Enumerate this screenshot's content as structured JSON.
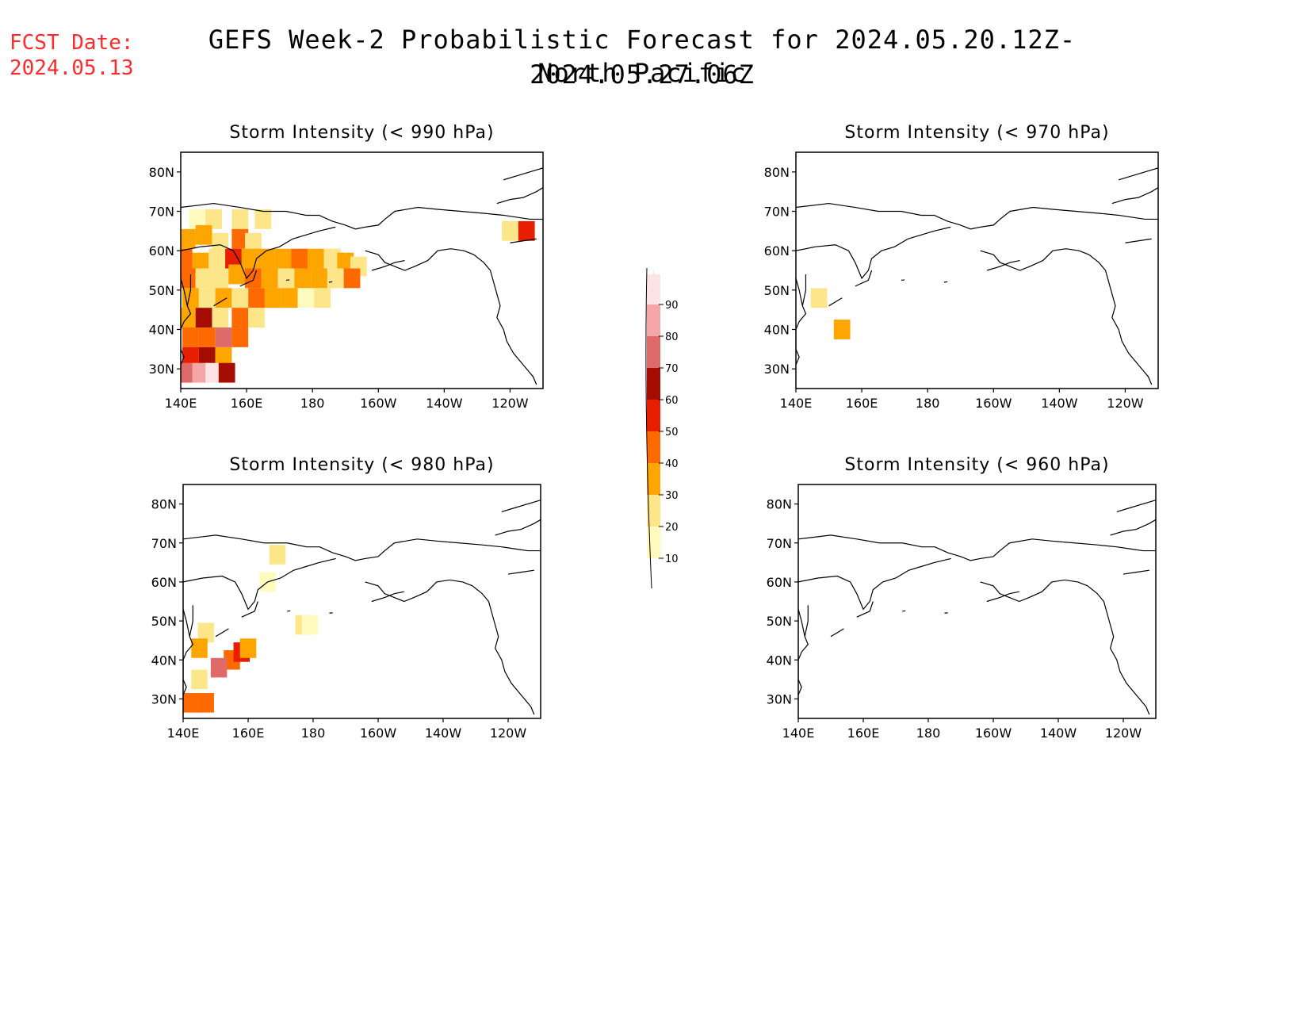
{
  "header": {
    "fcst_label": "FCST Date:",
    "fcst_date": "2024.05.13",
    "title_line1": "GEFS Week-2 Probabilistic Forecast for 2024.05.20.12Z-2024.05.27.06Z",
    "title_line2": "North Pacific",
    "fcst_color": "#ff2a2a"
  },
  "panels": [
    {
      "id": "p990",
      "title": "Storm Intensity (< 990 hPa)"
    },
    {
      "id": "p970",
      "title": "Storm Intensity (< 970 hPa)"
    },
    {
      "id": "p980",
      "title": "Storm Intensity (< 980 hPa)"
    },
    {
      "id": "p960",
      "title": "Storm Intensity (< 960 hPa)"
    }
  ],
  "axes": {
    "x_ticks": [
      "140E",
      "160E",
      "180",
      "160W",
      "140W",
      "120W"
    ],
    "y_ticks": [
      "80N",
      "70N",
      "60N",
      "50N",
      "40N",
      "30N"
    ],
    "lon_range_deg_east": [
      140,
      250
    ],
    "lat_range": [
      25,
      85
    ]
  },
  "colorbar": {
    "levels": [
      "10",
      "20",
      "30",
      "40",
      "50",
      "60",
      "70",
      "80",
      "90"
    ],
    "colors": [
      "#fffbbf",
      "#fde58a",
      "#ffa500",
      "#ff6a00",
      "#e81e00",
      "#a50d00",
      "#de6a6a",
      "#f4a6a6",
      "#fde4e4"
    ]
  },
  "chart_data": {
    "type": "heatmap",
    "units": "probability (%)",
    "fields": [
      {
        "panel": "p990",
        "cells": [
          [
            145,
            68,
            15
          ],
          [
            150,
            68,
            25
          ],
          [
            158,
            68,
            25
          ],
          [
            165,
            68,
            20
          ],
          [
            142,
            63,
            35
          ],
          [
            147,
            64,
            30
          ],
          [
            152,
            62,
            20
          ],
          [
            158,
            63,
            40
          ],
          [
            162,
            62,
            25
          ],
          [
            141,
            58,
            45
          ],
          [
            146,
            57,
            30
          ],
          [
            151,
            58,
            25
          ],
          [
            156,
            58,
            50
          ],
          [
            161,
            58,
            35
          ],
          [
            166,
            58,
            30
          ],
          [
            171,
            58,
            35
          ],
          [
            176,
            58,
            40
          ],
          [
            181,
            58,
            30
          ],
          [
            186,
            58,
            25
          ],
          [
            190,
            57,
            35
          ],
          [
            194,
            56,
            20
          ],
          [
            142,
            53,
            40
          ],
          [
            147,
            53,
            25
          ],
          [
            152,
            53,
            20
          ],
          [
            157,
            54,
            35
          ],
          [
            162,
            53,
            40
          ],
          [
            167,
            53,
            30
          ],
          [
            172,
            53,
            25
          ],
          [
            177,
            53,
            30
          ],
          [
            182,
            53,
            30
          ],
          [
            187,
            53,
            25
          ],
          [
            192,
            53,
            40
          ],
          [
            143,
            48,
            35
          ],
          [
            148,
            48,
            20
          ],
          [
            153,
            48,
            30
          ],
          [
            158,
            48,
            25
          ],
          [
            163,
            48,
            45
          ],
          [
            168,
            48,
            35
          ],
          [
            173,
            48,
            30
          ],
          [
            178,
            48,
            15
          ],
          [
            183,
            48,
            20
          ],
          [
            142,
            43,
            30
          ],
          [
            147,
            43,
            60
          ],
          [
            152,
            43,
            25
          ],
          [
            158,
            43,
            40
          ],
          [
            163,
            43,
            20
          ],
          [
            143,
            38,
            40
          ],
          [
            148,
            38,
            45
          ],
          [
            153,
            38,
            70
          ],
          [
            158,
            38,
            40
          ],
          [
            143,
            33,
            50
          ],
          [
            148,
            33,
            60
          ],
          [
            153,
            33,
            35
          ],
          [
            142,
            29,
            70
          ],
          [
            146,
            29,
            80
          ],
          [
            150,
            29,
            90
          ],
          [
            154,
            29,
            60
          ],
          [
            240,
            65,
            25
          ],
          [
            245,
            65,
            55
          ]
        ]
      },
      {
        "panel": "p970",
        "cells": [
          [
            147,
            48,
            20
          ],
          [
            154,
            40,
            30
          ]
        ]
      },
      {
        "panel": "p980",
        "cells": [
          [
            169,
            67,
            20
          ],
          [
            166,
            60,
            15
          ],
          [
            147,
            47,
            20
          ],
          [
            145,
            43,
            30
          ],
          [
            155,
            40,
            40
          ],
          [
            151,
            38,
            70
          ],
          [
            158,
            42,
            50
          ],
          [
            160,
            43,
            35
          ],
          [
            145,
            35,
            20
          ],
          [
            142,
            29,
            45
          ],
          [
            147,
            29,
            40
          ],
          [
            177,
            49,
            20
          ],
          [
            179,
            49,
            15
          ]
        ]
      },
      {
        "panel": "p960",
        "cells": []
      }
    ]
  }
}
